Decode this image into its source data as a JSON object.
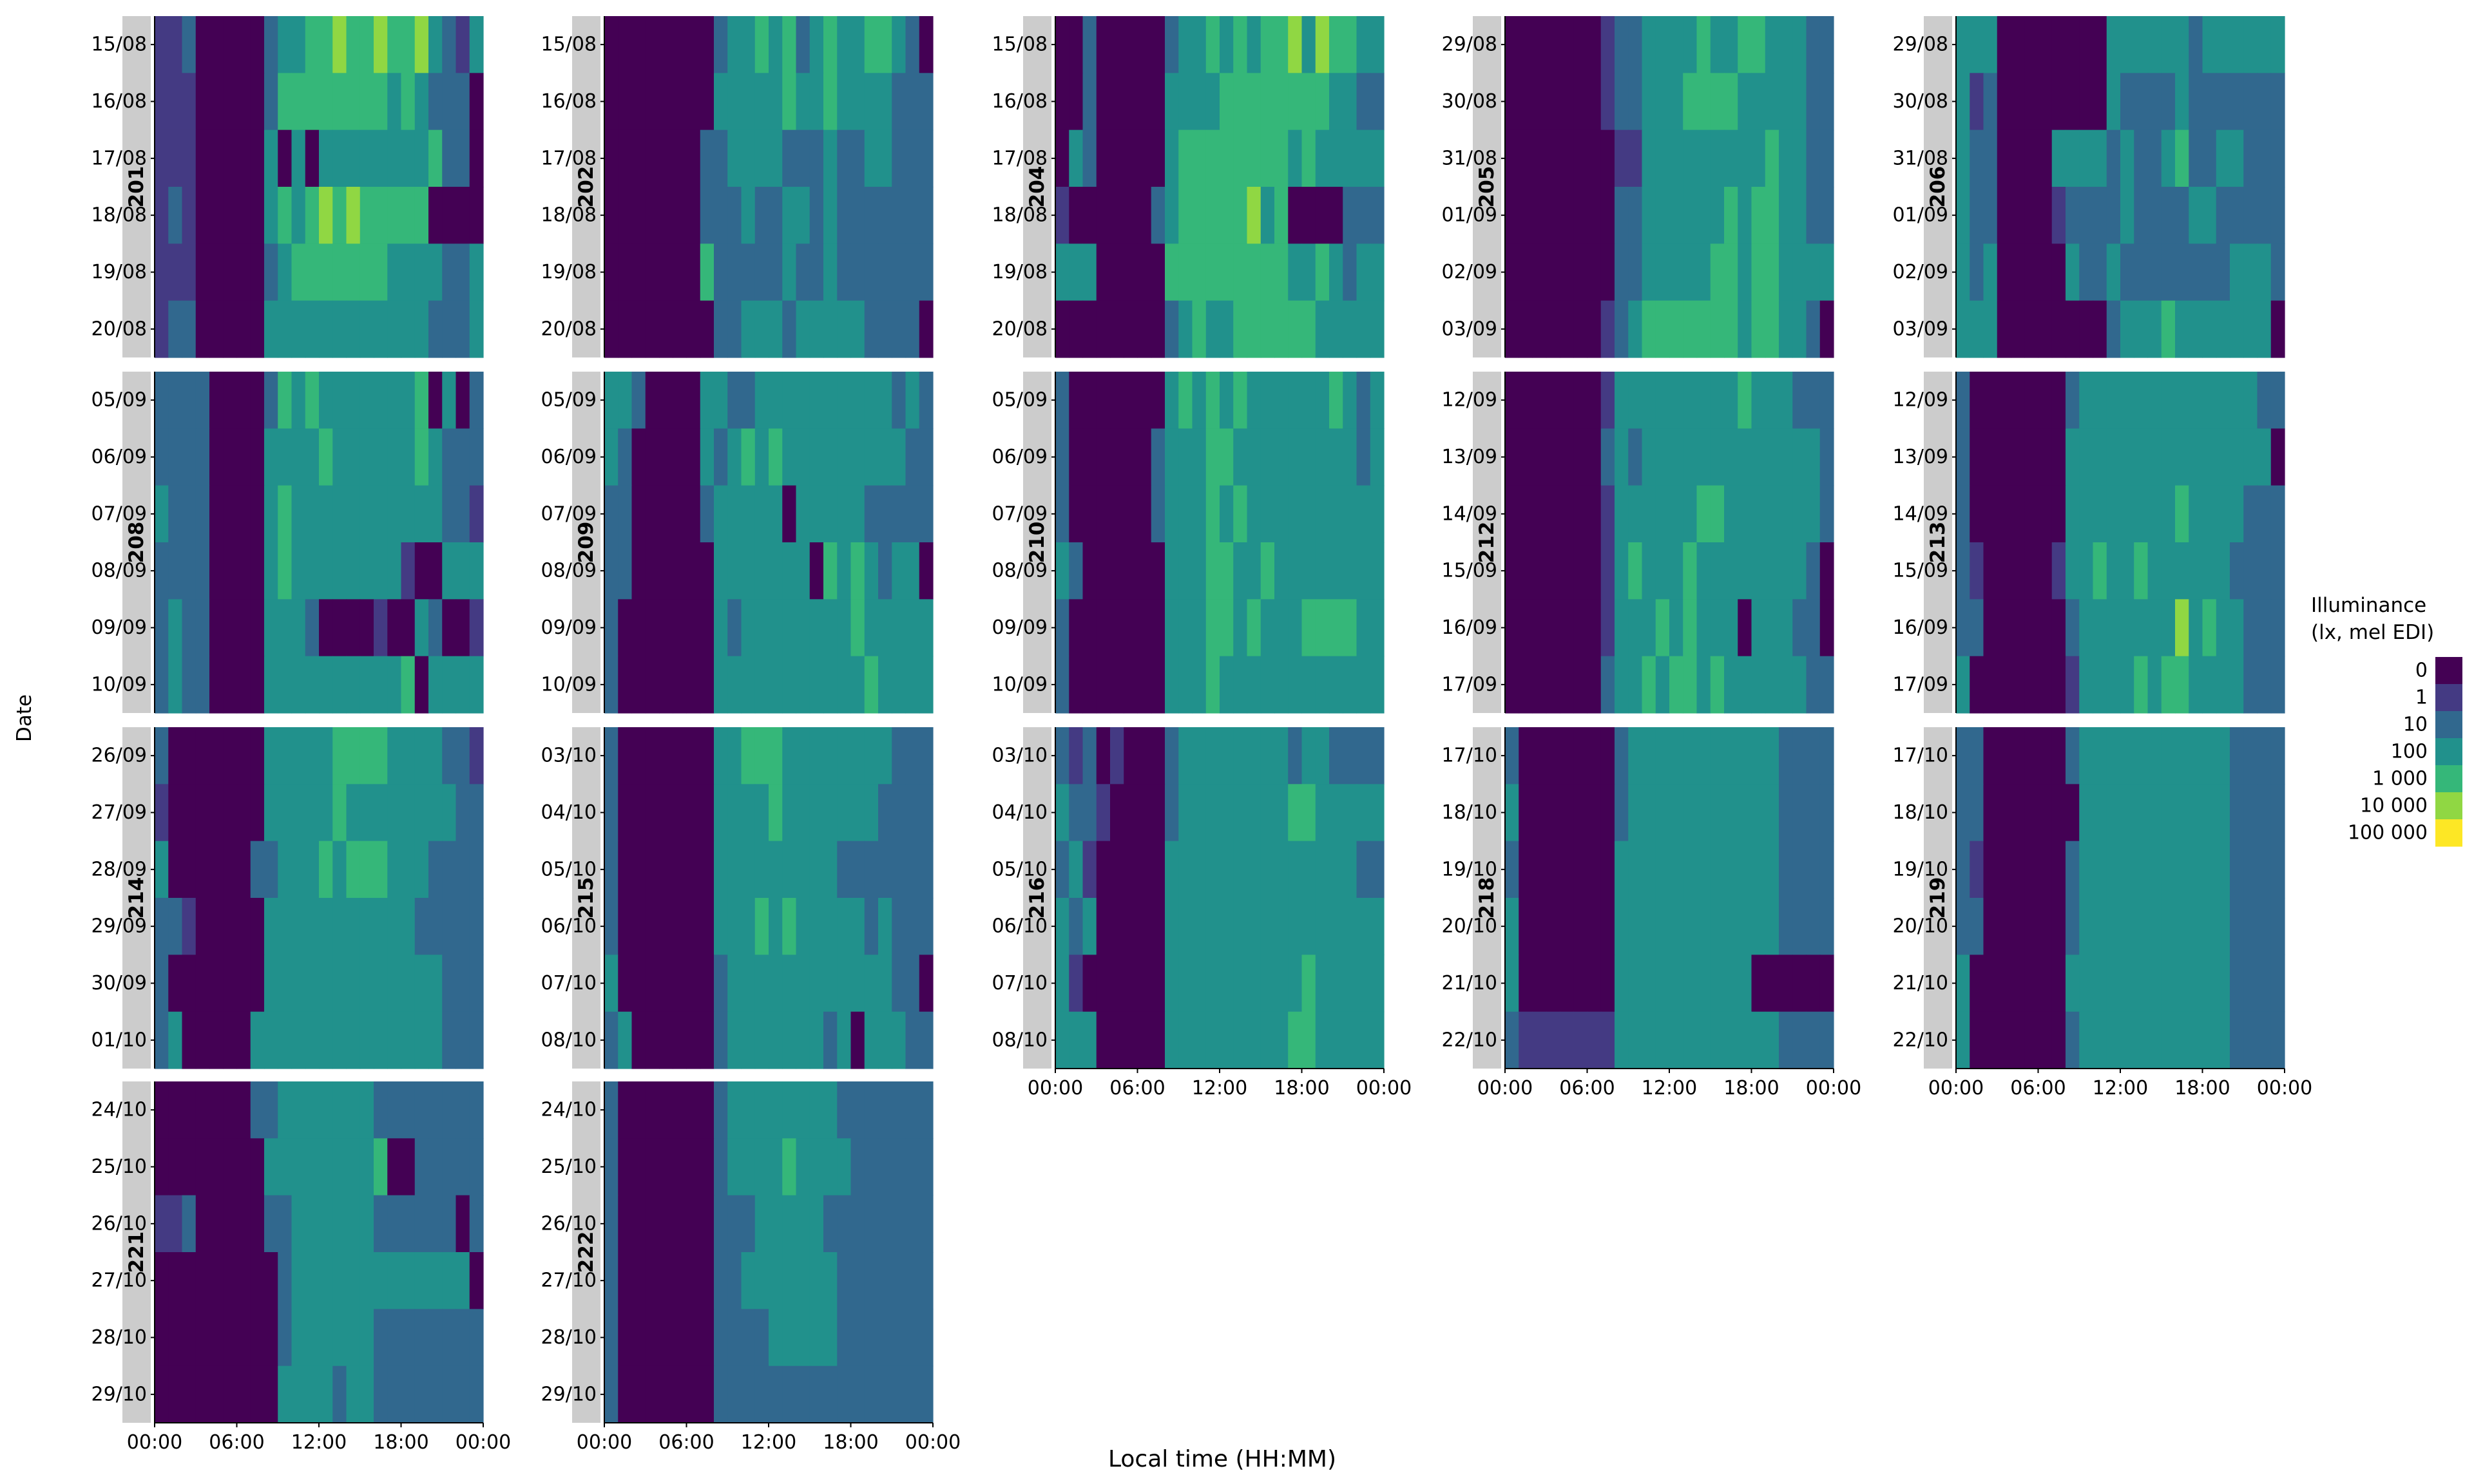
{
  "chart_data": {
    "type": "heatmap",
    "title": "",
    "xlabel": "Local time (HH:MM)",
    "ylabel": "Date",
    "x_ticks": [
      "00:00",
      "06:00",
      "12:00",
      "18:00",
      "00:00"
    ],
    "x_range_hours": [
      0,
      24
    ],
    "color_scale": {
      "title_lines": [
        "Illuminance",
        "(lx, mel EDI)"
      ],
      "scale": "log10",
      "labels": [
        "0",
        "1",
        "10",
        "100",
        "1 000",
        "10 000",
        "100 000"
      ],
      "colors": [
        "#440154",
        "#443a83",
        "#31688e",
        "#21918c",
        "#35b779",
        "#90d743",
        "#fde725"
      ]
    },
    "grid": false,
    "legend_position": "right",
    "levels_note": "values are colour-scale level indices 0-5 per hourly cell, read from the image",
    "panels": [
      {
        "id": "201",
        "dates": [
          "15/08",
          "16/08",
          "17/08",
          "18/08",
          "19/08",
          "20/08"
        ],
        "levels": [
          "112000002334454454453213",
          "111000002444444443432220",
          "111000003030333333334220",
          "121000003434545444440000",
          "111000002344444443333223",
          "122000003333333333332223"
        ]
      },
      {
        "id": "202",
        "dates": [
          "15/08",
          "16/08",
          "17/08",
          "18/08",
          "19/08",
          "20/08"
        ],
        "levels": [
          "000000002334342343344320",
          "000000003333343343333222",
          "000000022333322232233222",
          "000000022232233232222222",
          "000000042222232232222222",
          "000000002233323333322220"
        ]
      },
      {
        "id": "204",
        "dates": [
          "15/08",
          "16/08",
          "17/08",
          "18/08",
          "19/08",
          "20/08"
        ],
        "levels": [
          "002000002334343445354433",
          "002000003333444444443322",
          "032000003444444443433333",
          "100000023444445340000222",
          "333000004444444443343233",
          "000000002343344444433333"
        ]
      },
      {
        "id": "205",
        "dates": [
          "29/08",
          "30/08",
          "31/08",
          "01/09",
          "02/09",
          "03/09"
        ],
        "levels": [
          "000000012233334334433322",
          "000000012233344443333322",
          "000000001133333333343322",
          "000000002233333343443322",
          "000000002233333443443333",
          "000000012344444443443320"
        ]
      },
      {
        "id": "206",
        "dates": [
          "29/08",
          "30/08",
          "31/08",
          "01/09",
          "02/09",
          "03/09"
        ],
        "levels": [
          "333000000003333332333333",
          "312000000003222232222222",
          "322000033332322342233222",
          "322000012222322223322222",
          "323000003223222222223332",
          "333000000002333433333330"
        ]
      },
      {
        "id": "208",
        "dates": [
          "05/09",
          "06/09",
          "07/09",
          "08/09",
          "09/09",
          "10/09"
        ],
        "levels": [
          "222200002434333333340302",
          "222200003333433333343222",
          "322200003433333333333221",
          "222200003433333333100333",
          "232200003332000010032001",
          "232200003333333333403333"
        ]
      },
      {
        "id": "209",
        "dates": [
          "05/09",
          "06/09",
          "07/09",
          "08/09",
          "09/09",
          "10/09"
        ],
        "levels": [
          "332000033223333333333232",
          "320000032343433333333322",
          "220000023333303333322222",
          "220000003333333043432330",
          "200000003233333333433333",
          "200000003333333333343333"
        ]
      },
      {
        "id": "210",
        "dates": [
          "05/09",
          "06/09",
          "07/09",
          "08/09",
          "09/09",
          "10/09"
        ],
        "levels": [
          "200000003434343333334323",
          "200000023334433333333323",
          "200000023334343333333333",
          "320000003334433433333333",
          "200000003334434333444433",
          "200000003334333333333333"
        ]
      },
      {
        "id": "212",
        "dates": [
          "12/09",
          "13/09",
          "14/09",
          "15/09",
          "16/09",
          "17/09"
        ],
        "levels": [
          "000000013333333334333222",
          "000000023233333333333332",
          "000000013333334433333332",
          "000000013433343333333320",
          "000000013334343330333220",
          "000000023343443433333322"
        ]
      },
      {
        "id": "213",
        "dates": [
          "12/09",
          "13/09",
          "14/09",
          "15/09",
          "16/09",
          "17/09"
        ],
        "levels": [
          "200000002333333333333322",
          "200000003333333333333330",
          "200000003333333343333222",
          "210000013343343333332222",
          "220000002333333353433222",
          "300000001333343443333222"
        ]
      },
      {
        "id": "214",
        "dates": [
          "26/09",
          "27/09",
          "28/09",
          "29/09",
          "30/09",
          "01/10"
        ],
        "levels": [
          "200000003333344443333221",
          "100000003333343333333322",
          "300000022333434443332222",
          "221000003333333333322222",
          "200000003333333333333222",
          "230000033333333333333222"
        ]
      },
      {
        "id": "215",
        "dates": [
          "03/10",
          "04/10",
          "05/10",
          "06/10",
          "07/10",
          "08/10"
        ],
        "levels": [
          "200000003344433333333222",
          "200000003333433333332222",
          "200000003333333332222222",
          "200000003334343333323222",
          "300000002333333333333220",
          "230000002333333323033322"
        ]
      },
      {
        "id": "216",
        "dates": [
          "03/10",
          "04/10",
          "05/10",
          "06/10",
          "07/10",
          "08/10"
        ],
        "levels": [
          "212010002333333332332222",
          "322100002333333334433333",
          "231000003333333333333322",
          "323000003333333333333333",
          "310000003333333333433333",
          "333000003333333334433333"
        ]
      },
      {
        "id": "218",
        "dates": [
          "17/10",
          "18/10",
          "19/10",
          "20/10",
          "21/10",
          "22/10"
        ],
        "levels": [
          "200000002333333333332222",
          "300000002333333333332222",
          "200000003333333333332222",
          "300000003333333333332222",
          "300000003333333333000000",
          "211111113333333333332222"
        ]
      },
      {
        "id": "219",
        "dates": [
          "17/10",
          "18/10",
          "19/10",
          "20/10",
          "21/10",
          "22/10"
        ],
        "levels": [
          "220000002333333333332222",
          "220000000333333333332222",
          "210000002333333333332222",
          "220000002333333333332222",
          "300000003333333333332222",
          "300000002333333333332222"
        ]
      },
      {
        "id": "221",
        "dates": [
          "24/10",
          "25/10",
          "26/10",
          "27/10",
          "28/10",
          "29/10"
        ],
        "levels": [
          "000000022333333322222222",
          "000000003333333340022222",
          "112000002233333322222202",
          "000000000233333333333330",
          "000000000233333322222222",
          "000000000333323322222222"
        ]
      },
      {
        "id": "222",
        "dates": [
          "24/10",
          "25/10",
          "26/10",
          "27/10",
          "28/10",
          "29/10"
        ],
        "levels": [
          "200000002333333332222222",
          "200000002333343333222222",
          "200000002223333322222222",
          "200000002233333332222222",
          "200000002222333332222222",
          "200000002222222222222222"
        ]
      }
    ]
  }
}
